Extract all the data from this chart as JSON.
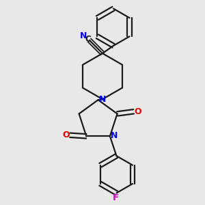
{
  "background_color": "#e8e8e8",
  "bond_color": "#1a1a1a",
  "N_color": "#0000ee",
  "O_color": "#dd0000",
  "F_color": "#cc00cc",
  "line_width": 1.6,
  "figsize": [
    3.0,
    3.0
  ],
  "dpi": 100,
  "xlim": [
    0.1,
    0.9
  ],
  "ylim": [
    0.05,
    0.98
  ]
}
